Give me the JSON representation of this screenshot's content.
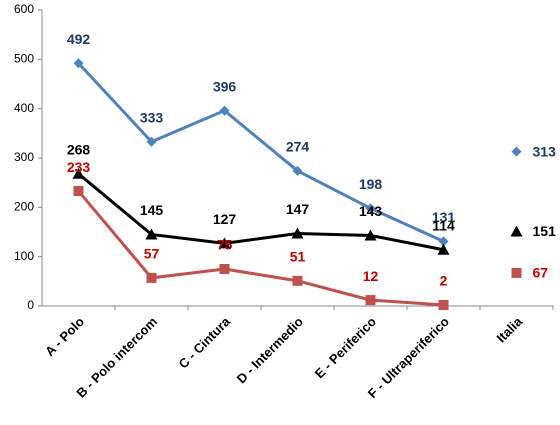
{
  "chart_data": {
    "type": "line",
    "categories": [
      "A - Polo",
      "B - Polo intercom",
      "C - Cintura",
      "D - Intermedio",
      "E - Periferico",
      "F - Ultraperiferico",
      "Italia"
    ],
    "series": [
      {
        "color": "#4f81bd",
        "label_color": "#1f3864",
        "marker": "diamond",
        "line": true,
        "values": [
          492,
          333,
          396,
          274,
          198,
          131,
          null
        ]
      },
      {
        "color": "#000000",
        "label_color": "#000000",
        "marker": "triangle",
        "line": true,
        "values": [
          268,
          145,
          127,
          147,
          143,
          114,
          null
        ]
      },
      {
        "color": "#c0504d",
        "label_color": "#c00000",
        "marker": "square",
        "line": true,
        "values": [
          233,
          57,
          75,
          51,
          12,
          2,
          null
        ]
      },
      {
        "color": "#4f81bd",
        "label_color": "#1f3864",
        "marker": "diamond",
        "line": false,
        "values": [
          null,
          null,
          null,
          null,
          null,
          null,
          313
        ]
      },
      {
        "color": "#000000",
        "label_color": "#000000",
        "marker": "triangle",
        "line": false,
        "values": [
          null,
          null,
          null,
          null,
          null,
          null,
          151
        ]
      },
      {
        "color": "#c0504d",
        "label_color": "#c00000",
        "marker": "square",
        "line": false,
        "values": [
          null,
          null,
          null,
          null,
          null,
          null,
          67
        ]
      }
    ],
    "ylim": [
      0,
      600
    ],
    "yticks": [
      0,
      100,
      200,
      300,
      400,
      500,
      600
    ],
    "grid": false
  }
}
